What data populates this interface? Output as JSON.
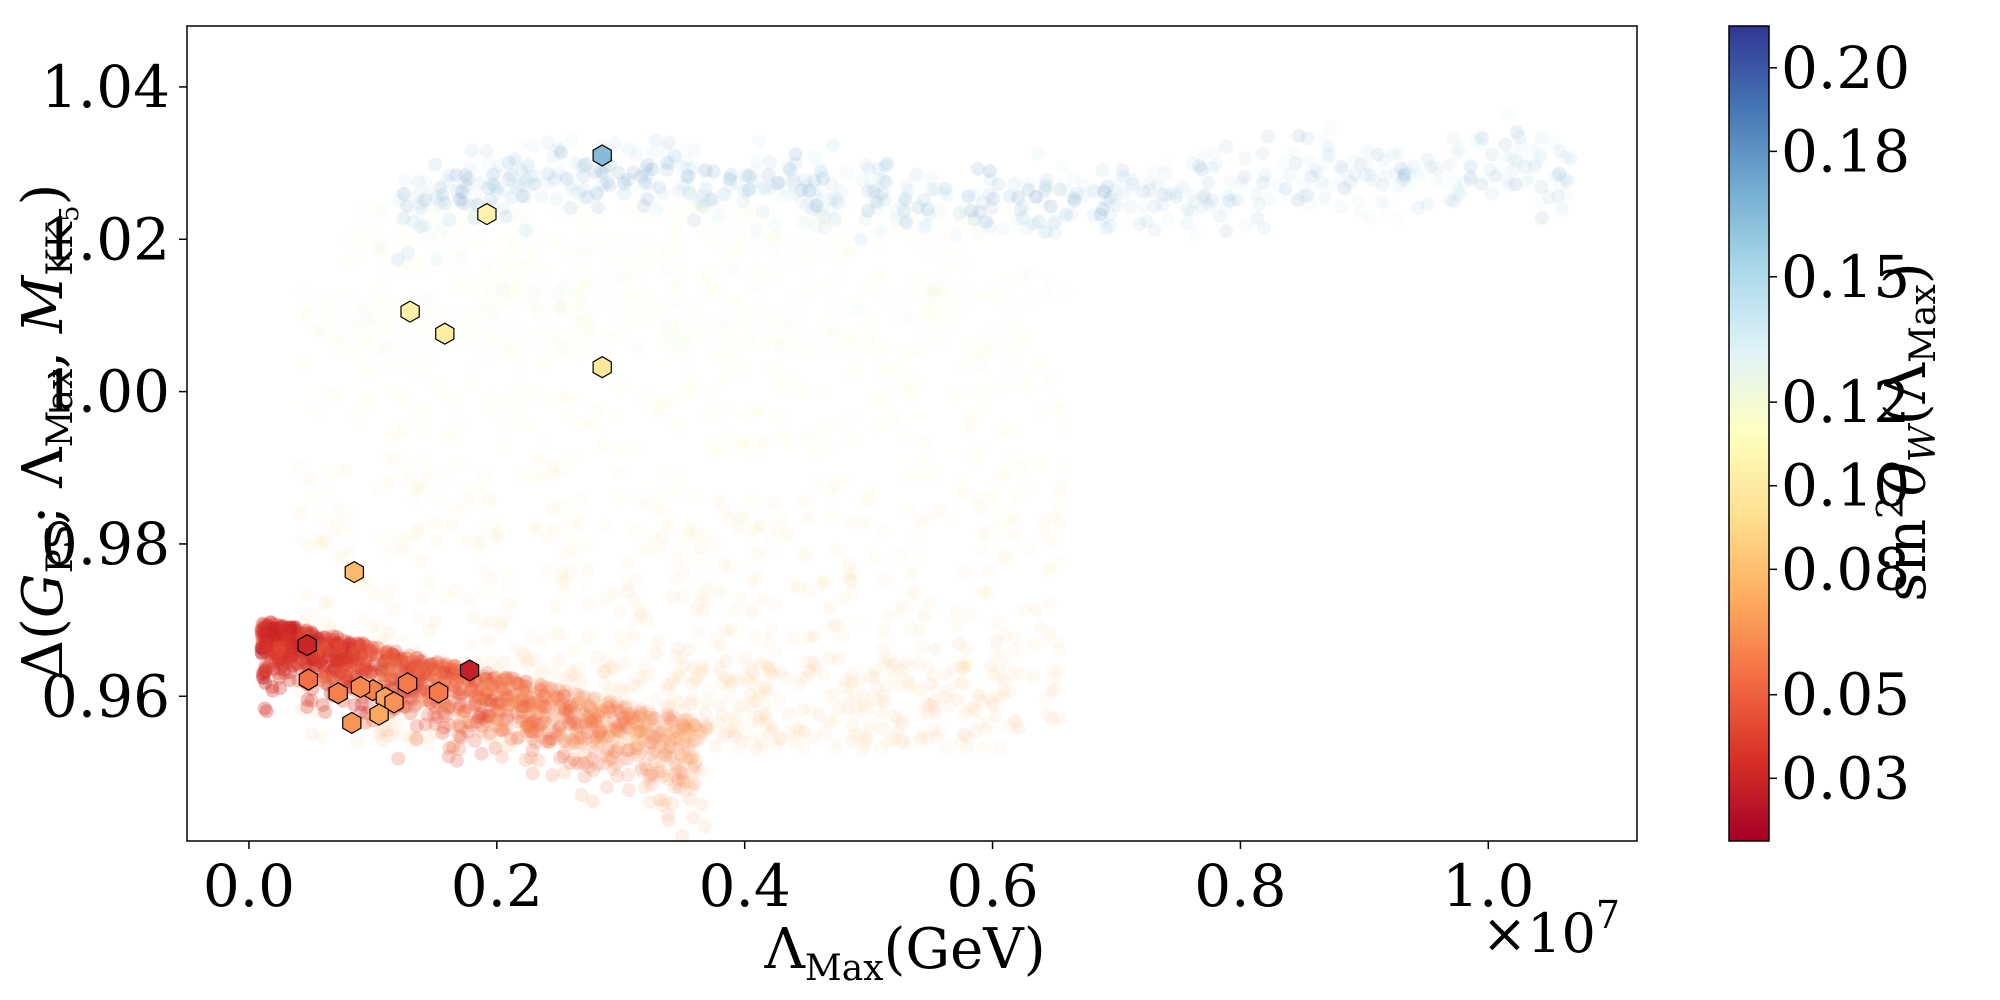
{
  "chart_data": {
    "type": "scatter",
    "title": "",
    "xlabel": "ΛMax(GeV)",
    "xlabel_parts": {
      "main": "Λ",
      "sub": "Max",
      "rest": "(GeV)"
    },
    "ylabel": "Δ(GPS; ΛMax, MKK5)",
    "ylabel_parts": {
      "delta": "Δ(",
      "g": "G",
      "g_sub": "PS",
      "sep": "; Λ",
      "lam_sub": "Max",
      "comma": ", ",
      "m": "M",
      "m_sub": "KK",
      "m_subsub": "5",
      "close": ")"
    },
    "x_multiplier": "×10",
    "x_multiplier_exp": "7",
    "xlim": [
      -0.05,
      1.12
    ],
    "ylim": [
      0.941,
      1.048
    ],
    "x_ticks": [
      0.0,
      0.2,
      0.4,
      0.6,
      0.8,
      1.0
    ],
    "x_tick_labels": [
      "0.0",
      "0.2",
      "0.4",
      "0.6",
      "0.8",
      "1.0"
    ],
    "y_ticks": [
      0.96,
      0.98,
      1.0,
      1.02,
      1.04
    ],
    "y_tick_labels": [
      "0.96",
      "0.98",
      "1.00",
      "1.02",
      "1.04"
    ],
    "grid": false,
    "legend": "none",
    "colorbar": {
      "label": "sin²θW(ΛMax)",
      "label_parts": {
        "sin": "sin",
        "sup": "2",
        "theta": "θ",
        "theta_sub": "W",
        "open": "(Λ",
        "lam_sub": "Max",
        "close": ")"
      },
      "colormap": "RdYlBu",
      "range": [
        0.015,
        0.21
      ],
      "ticks": [
        0.03,
        0.05,
        0.08,
        0.1,
        0.12,
        0.15,
        0.18,
        0.2
      ],
      "tick_labels": [
        "0.03",
        "0.05",
        "0.08",
        "0.10",
        "0.12",
        "0.15",
        "0.18",
        "0.20"
      ],
      "colors": [
        "#a50026",
        "#d73027",
        "#f46d43",
        "#fdae61",
        "#fee090",
        "#ffffbf",
        "#e0f3f8",
        "#abd9e9",
        "#74add1",
        "#4575b4",
        "#313695"
      ]
    },
    "series": [
      {
        "marker": "hexagon",
        "edgecolor": "#000000",
        "points": [
          {
            "x": 0.285,
            "y": 1.031,
            "c": 0.165
          },
          {
            "x": 0.192,
            "y": 1.0233,
            "c": 0.105
          },
          {
            "x": 0.13,
            "y": 1.0105,
            "c": 0.103
          },
          {
            "x": 0.158,
            "y": 1.0076,
            "c": 0.101
          },
          {
            "x": 0.285,
            "y": 1.0032,
            "c": 0.098
          },
          {
            "x": 0.085,
            "y": 0.9763,
            "c": 0.078
          },
          {
            "x": 0.047,
            "y": 0.9667,
            "c": 0.03
          },
          {
            "x": 0.178,
            "y": 0.9634,
            "c": 0.028
          },
          {
            "x": 0.048,
            "y": 0.9622,
            "c": 0.055
          },
          {
            "x": 0.128,
            "y": 0.9617,
            "c": 0.058
          },
          {
            "x": 0.1,
            "y": 0.9608,
            "c": 0.06
          },
          {
            "x": 0.09,
            "y": 0.9612,
            "c": 0.062
          },
          {
            "x": 0.072,
            "y": 0.9604,
            "c": 0.06
          },
          {
            "x": 0.153,
            "y": 0.9605,
            "c": 0.058
          },
          {
            "x": 0.11,
            "y": 0.9598,
            "c": 0.07
          },
          {
            "x": 0.117,
            "y": 0.9592,
            "c": 0.065
          },
          {
            "x": 0.105,
            "y": 0.9576,
            "c": 0.072
          },
          {
            "x": 0.083,
            "y": 0.9565,
            "c": 0.066
          }
        ]
      }
    ]
  }
}
